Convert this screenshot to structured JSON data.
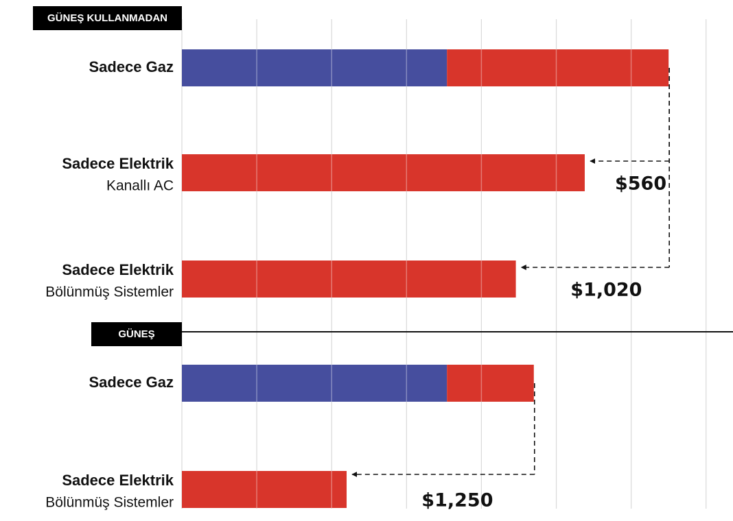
{
  "chart_data": {
    "type": "bar",
    "orientation": "horizontal",
    "stacked": true,
    "groups": [
      {
        "label": "GÜNEŞ KULLANMADAN",
        "rows": 3
      },
      {
        "label": "GÜNEŞ",
        "rows": 2
      }
    ],
    "categories": [
      "Sadece Gaz",
      "Sadece Elektrik",
      "Sadece Elektrik",
      "Sadece Gaz",
      "Sadece Elektrik"
    ],
    "category_sublabels": [
      null,
      "Kanallı AC",
      "Bölünmüş Sistemler",
      null,
      "Bölünmüş Sistemler"
    ],
    "series": [
      {
        "color": "#464e9e",
        "values": [
          1770,
          null,
          null,
          1770,
          null
        ]
      },
      {
        "color": "#d8352b",
        "values": [
          1480,
          2690,
          2230,
          580,
          1100
        ]
      }
    ],
    "xlim": [
      0,
      3680
    ],
    "xticks": [
      0,
      500,
      1000,
      1500,
      2000,
      2500,
      3000,
      3500
    ],
    "grid": true,
    "annotations": [
      {
        "value": 560,
        "label": "$560",
        "from": 0,
        "to": 1
      },
      {
        "value": 1020,
        "label": "$1,020",
        "from": 0,
        "to": 2
      },
      {
        "value": 1250,
        "label": "$1,250",
        "from": 3,
        "to": 4
      }
    ]
  }
}
